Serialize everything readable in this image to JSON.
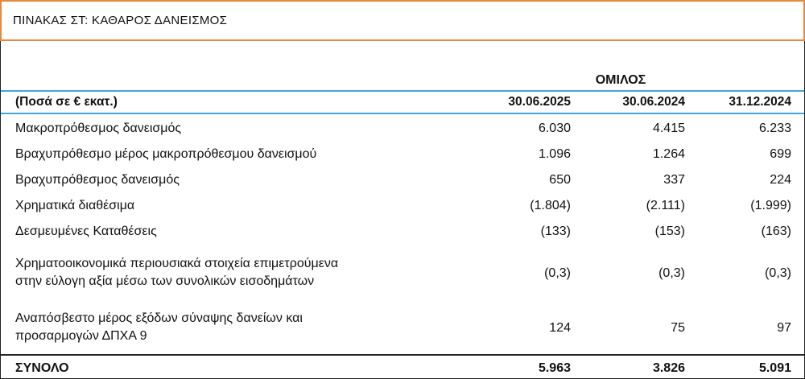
{
  "title": "ΠΙΝΑΚΑΣ ΣΤ: ΚΑΘΑΡΟΣ ΔΑΝΕΙΣΜΟΣ",
  "group_label": "ΟΜΙΛΟΣ",
  "header": {
    "label": "(Ποσά σε € εκατ.)",
    "columns": [
      "30.06.2025",
      "30.06.2024",
      "31.12.2024"
    ]
  },
  "rows": [
    {
      "label_lines": [
        "Μακροπρόθεσμος δανεισμός"
      ],
      "values": [
        "6.030",
        "4.415",
        "6.233"
      ]
    },
    {
      "label_lines": [
        "Βραχυπρόθεσμο μέρος μακροπρόθεσμου δανεισμού"
      ],
      "values": [
        "1.096",
        "1.264",
        "699"
      ]
    },
    {
      "label_lines": [
        "Βραχυπρόθεσμος δανεισμός"
      ],
      "values": [
        "650",
        "337",
        "224"
      ]
    },
    {
      "label_lines": [
        "Χρηματικά διαθέσιμα"
      ],
      "values": [
        "(1.804)",
        "(2.111)",
        "(1.999)"
      ]
    },
    {
      "label_lines": [
        "Δεσμευμένες Καταθέσεις"
      ],
      "values": [
        "(133)",
        "(153)",
        "(163)"
      ]
    },
    {
      "label_lines": [
        "Χρηματοοικονομικά περιουσιακά στοιχεία επιμετρούμενα",
        "στην εύλογη αξία μέσω των συνολικών εισοδημάτων"
      ],
      "values": [
        "(0,3)",
        "(0,3)",
        "(0,3)"
      ]
    },
    {
      "label_lines": [
        "Αναπόσβεστο μέρος εξόδων σύναψης δανείων και",
        "προσαρμογών ΔΠΧΑ 9"
      ],
      "values": [
        "124",
        "75",
        "97"
      ]
    }
  ],
  "total": {
    "label": "ΣΥΝΟΛΟ",
    "values": [
      "5.963",
      "3.826",
      "5.091"
    ]
  }
}
